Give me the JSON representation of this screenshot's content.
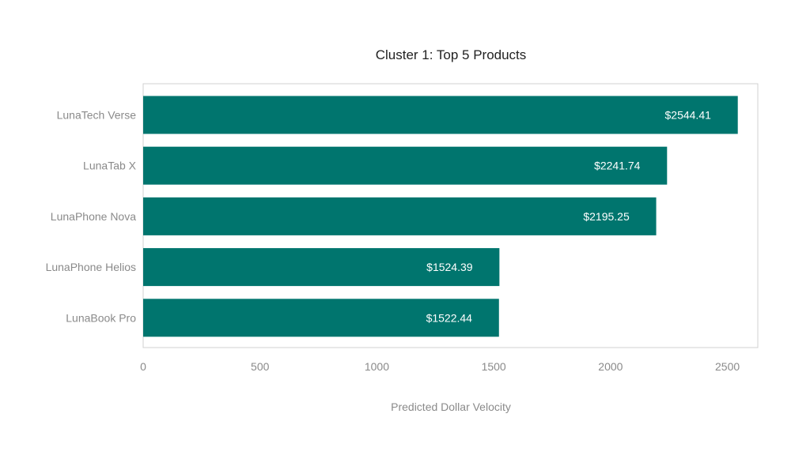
{
  "chart_data": {
    "type": "bar",
    "orientation": "horizontal",
    "title": "Cluster 1: Top 5 Products",
    "xlabel": "Predicted Dollar Velocity",
    "ylabel": "",
    "categories": [
      "LunaTech Verse",
      "LunaTab X",
      "LunaPhone Nova",
      "LunaPhone Helios",
      "LunaBook Pro"
    ],
    "values": [
      2544.41,
      2241.74,
      2195.25,
      1524.39,
      1522.44
    ],
    "value_labels": [
      "$2544.41",
      "$2241.74",
      "$2195.25",
      "$1524.39",
      "$1522.44"
    ],
    "x_ticks": [
      0,
      500,
      1000,
      1500,
      2000,
      2500
    ],
    "x_tick_labels": [
      "0",
      "500",
      "1000",
      "1500",
      "2000",
      "2500"
    ],
    "xlim": [
      0,
      2630
    ],
    "grid": false,
    "legend": "none",
    "colors": {
      "bar": "#00756e",
      "frame": "#d0d0d0",
      "bar_label": "#ffffff"
    }
  }
}
